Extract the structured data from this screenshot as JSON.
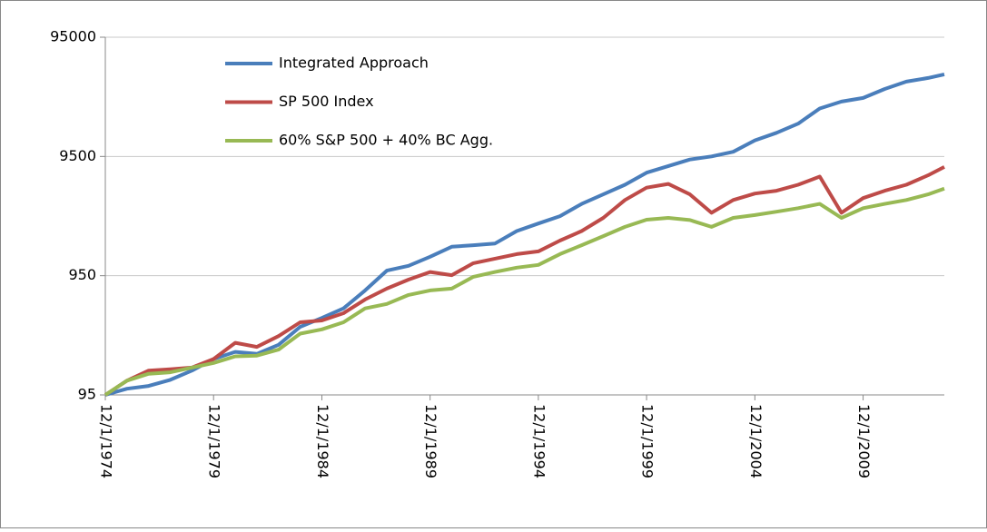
{
  "chart_data": {
    "type": "line",
    "x": [
      "12/1/1974",
      "12/1/1975",
      "12/1/1976",
      "12/1/1977",
      "12/1/1978",
      "12/1/1979",
      "12/1/1980",
      "12/1/1981",
      "12/1/1982",
      "12/1/1983",
      "12/1/1984",
      "12/1/1985",
      "12/1/1986",
      "12/1/1987",
      "12/1/1988",
      "12/1/1989",
      "12/1/1990",
      "12/1/1991",
      "12/1/1992",
      "12/1/1993",
      "12/1/1994",
      "12/1/1995",
      "12/1/1996",
      "12/1/1997",
      "12/1/1998",
      "12/1/1999",
      "12/1/2000",
      "12/1/2001",
      "12/1/2002",
      "12/1/2003",
      "12/1/2004",
      "12/1/2005",
      "12/1/2006",
      "12/1/2007",
      "12/1/2008",
      "12/1/2009",
      "12/1/2010",
      "12/1/2011",
      "12/1/2012",
      "9/1/2013"
    ],
    "series": [
      {
        "name": "Integrated Approach",
        "color": "#4a7ebb",
        "values": [
          95,
          107,
          113,
          127,
          152,
          190,
          218,
          210,
          250,
          354,
          420,
          505,
          715,
          1048,
          1150,
          1370,
          1660,
          1710,
          1770,
          2250,
          2600,
          3000,
          3800,
          4570,
          5500,
          6950,
          7900,
          8960,
          9500,
          10400,
          12960,
          15000,
          17900,
          24000,
          27400,
          29400,
          35000,
          40300,
          43200,
          46400
        ]
      },
      {
        "name": "SP 500 Index",
        "color": "#be4b48",
        "values": [
          95,
          125,
          152,
          156,
          161,
          190,
          260,
          240,
          296,
          386,
          400,
          460,
          600,
          740,
          880,
          1020,
          960,
          1210,
          1320,
          1440,
          1520,
          1870,
          2250,
          2900,
          4100,
          5200,
          5590,
          4570,
          3200,
          4100,
          4640,
          4900,
          5500,
          6440,
          3200,
          4250,
          4900,
          5500,
          6600,
          7750
        ]
      },
      {
        "name": "60% S&P 500 + 40% BC Agg.",
        "color": "#98b954",
        "values": [
          95,
          125,
          143,
          147,
          161,
          176,
          200,
          203,
          228,
          310,
          337,
          386,
          505,
          550,
          655,
          715,
          740,
          930,
          1020,
          1110,
          1170,
          1440,
          1710,
          2040,
          2440,
          2800,
          2900,
          2780,
          2440,
          2900,
          3060,
          3270,
          3500,
          3800,
          2900,
          3500,
          3800,
          4100,
          4570,
          5100
        ]
      }
    ],
    "xlim": [
      "12/1/1974",
      "9/1/2013"
    ],
    "xticks": [
      "12/1/1974",
      "12/1/1979",
      "12/1/1984",
      "12/1/1989",
      "12/1/1994",
      "12/1/1999",
      "12/1/2004",
      "12/1/2009"
    ],
    "ylim": [
      95,
      95000
    ],
    "yticks": [
      95,
      950,
      9500,
      95000
    ],
    "log_y": true,
    "grid": true,
    "legend": "top-left"
  }
}
